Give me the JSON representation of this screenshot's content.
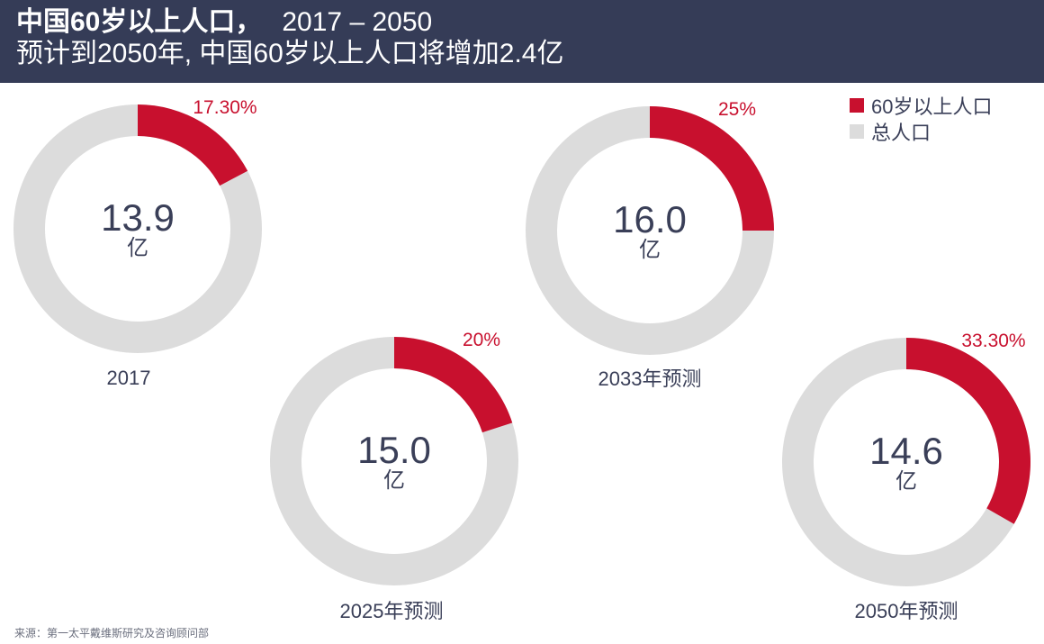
{
  "header": {
    "title": "中国60岁以上人口，",
    "title_years": "2017 – 2050",
    "subtitle": "预计到2050年, 中国60岁以上人口将增加2.4亿"
  },
  "legend": {
    "items": [
      {
        "label": "60岁以上人口",
        "color": "#c8102e"
      },
      {
        "label": "总人口",
        "color": "#dcdcdc"
      }
    ]
  },
  "chart_data": {
    "type": "donut",
    "unit": "亿",
    "colors": {
      "elderly": "#c8102e",
      "total": "#dcdcdc"
    },
    "charts": [
      {
        "year_label": "2017",
        "total_population": "13.9",
        "elderly_share": 17.3,
        "share_label": "17.30%"
      },
      {
        "year_label": "2025年预测",
        "total_population": "15.0",
        "elderly_share": 20,
        "share_label": "20%"
      },
      {
        "year_label": "2033年预测",
        "total_population": "16.0",
        "elderly_share": 25,
        "share_label": "25%"
      },
      {
        "year_label": "2050年预测",
        "total_population": "14.6",
        "elderly_share": 33.3,
        "share_label": "33.30%"
      }
    ]
  },
  "footer": {
    "source": "来源：第一太平戴维斯研究及咨询顾问部"
  }
}
